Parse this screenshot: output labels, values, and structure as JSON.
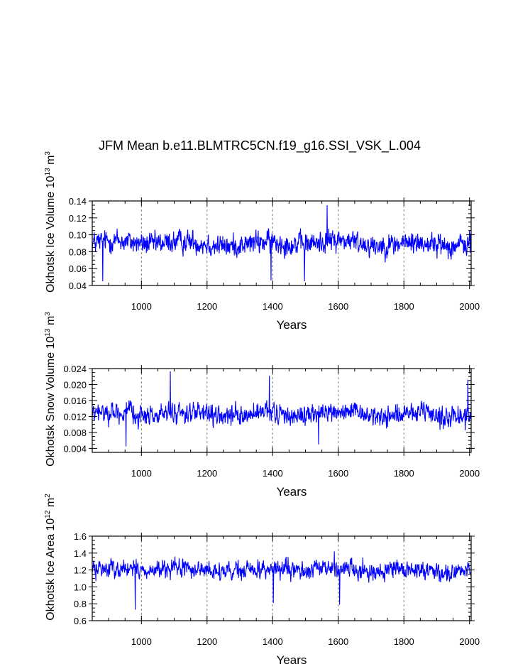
{
  "figure": {
    "title": "JFM Mean b.e11.BLMTRC5CN.f19_g16.SSI_VSK_L.004"
  },
  "colors": {
    "series": "#0000ff",
    "axis": "#000000",
    "grid": "#808080"
  },
  "chart_data": [
    {
      "type": "line",
      "name": "ice-volume",
      "title": "JFM Mean b.e11.BLMTRC5CN.f19_g16.SSI_VSK_L.004",
      "ylabel": "Okhotsk Ice Volume 10",
      "ylabel_exp": "13",
      "ylabel_unit": " m",
      "ylabel_unit_exp": "3",
      "xlabel": "Years",
      "xlim": [
        850,
        2005
      ],
      "ylim": [
        0.04,
        0.14
      ],
      "xticks": [
        1000,
        1200,
        1400,
        1600,
        1800,
        2000
      ],
      "xtick_labels": [
        "1000",
        "1200",
        "1400",
        "1600",
        "1800",
        "2000"
      ],
      "yticks": [
        0.04,
        0.06,
        0.08,
        0.1,
        0.12,
        0.14
      ],
      "ytick_labels": [
        "0.04",
        "0.06",
        "0.08",
        "0.10",
        "0.12",
        "0.14"
      ],
      "x_start": 850,
      "x_end": 2005,
      "mean": 0.09,
      "amplitude": 0.015,
      "extrema": [
        [
          1566,
          0.135
        ],
        [
          1497,
          0.045
        ],
        [
          1395,
          0.046
        ],
        [
          882,
          0.045
        ]
      ],
      "grid_x": [
        1000,
        1200,
        1400,
        1600,
        1800
      ]
    },
    {
      "type": "line",
      "name": "snow-volume",
      "ylabel": "Okhotsk Snow Volume 10",
      "ylabel_exp": "13",
      "ylabel_unit": " m",
      "ylabel_unit_exp": "3",
      "xlabel": "Years",
      "xlim": [
        850,
        2005
      ],
      "ylim": [
        0.003,
        0.024
      ],
      "xticks": [
        1000,
        1200,
        1400,
        1600,
        1800,
        2000
      ],
      "xtick_labels": [
        "1000",
        "1200",
        "1400",
        "1600",
        "1800",
        "2000"
      ],
      "yticks": [
        0.004,
        0.008,
        0.012,
        0.016,
        0.02,
        0.024
      ],
      "ytick_labels": [
        "0.004",
        "0.008",
        "0.012",
        "0.016",
        "0.020",
        "0.024"
      ],
      "x_start": 850,
      "x_end": 2005,
      "mean": 0.0125,
      "amplitude": 0.0028,
      "extrema": [
        [
          1088,
          0.0233
        ],
        [
          1390,
          0.0222
        ],
        [
          1995,
          0.0212
        ],
        [
          953,
          0.0045
        ],
        [
          1540,
          0.005
        ]
      ],
      "grid_x": [
        1000,
        1200,
        1400,
        1600,
        1800
      ]
    },
    {
      "type": "line",
      "name": "ice-area",
      "ylabel": "Okhotsk Ice Area 10",
      "ylabel_exp": "12",
      "ylabel_unit": " m",
      "ylabel_unit_exp": "2",
      "xlabel": "Years",
      "xlim": [
        850,
        2005
      ],
      "ylim": [
        0.6,
        1.6
      ],
      "xticks": [
        1000,
        1200,
        1400,
        1600,
        1800,
        2000
      ],
      "xtick_labels": [
        "1000",
        "1200",
        "1400",
        "1600",
        "1800",
        "2000"
      ],
      "yticks": [
        0.6,
        0.8,
        1.0,
        1.2,
        1.4,
        1.6
      ],
      "ytick_labels": [
        "0.6",
        "0.8",
        "1.0",
        "1.2",
        "1.4",
        "1.6"
      ],
      "x_start": 850,
      "x_end": 2005,
      "mean": 1.2,
      "amplitude": 0.12,
      "extrema": [
        [
          981,
          0.73
        ],
        [
          1604,
          0.79
        ],
        [
          1402,
          0.81
        ],
        [
          1588,
          1.42
        ]
      ],
      "grid_x": [
        1000,
        1200,
        1400,
        1600,
        1800
      ]
    }
  ]
}
